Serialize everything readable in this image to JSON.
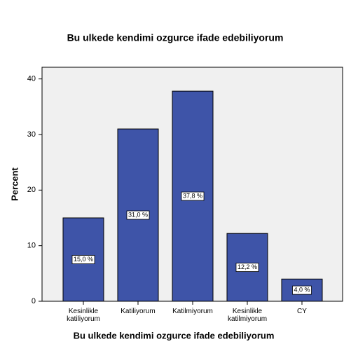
{
  "chart_data": {
    "type": "bar",
    "title": "Bu ulkede kendimi ozgurce ifade edebiliyorum",
    "x_label": "Bu ulkede kendimi ozgurce ifade edebiliyorum",
    "y_label": "Percent",
    "categories": [
      "Kesinlikle katiliyorum",
      "Katiliyorum",
      "Katilmiyorum",
      "Kesinlikle katilmiyorum",
      "CY"
    ],
    "values": [
      15.0,
      31.0,
      37.8,
      12.2,
      4.0
    ],
    "value_labels": [
      "15,0 %",
      "31,0 %",
      "37,8 %",
      "12,2 %",
      "4,0 %"
    ],
    "color": "#3e54a8",
    "ylim": [
      0,
      42.1
    ],
    "yticks": [
      0,
      10,
      20,
      30,
      40
    ]
  }
}
